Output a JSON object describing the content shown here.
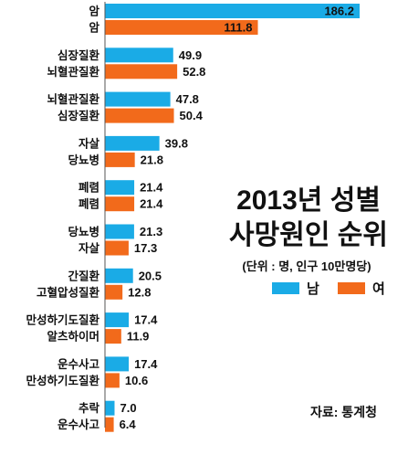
{
  "chart_data": {
    "type": "bar",
    "orientation": "horizontal",
    "title_lines": [
      "2013년 성별",
      "사망원인 순위"
    ],
    "unit_note": "(단위 : 명, 인구 10만명당)",
    "source": "자료: 통계청",
    "legend_position": "right",
    "series": [
      {
        "name": "남",
        "color": "#1aabe6"
      },
      {
        "name": "여",
        "color": "#f26a1b"
      }
    ],
    "groups": [
      {
        "rank": 1,
        "male": {
          "cause": "암",
          "value": 186.2
        },
        "female": {
          "cause": "암",
          "value": 111.8
        }
      },
      {
        "rank": 2,
        "male": {
          "cause": "심장질환",
          "value": 49.9
        },
        "female": {
          "cause": "뇌혈관질환",
          "value": 52.8
        }
      },
      {
        "rank": 3,
        "male": {
          "cause": "뇌혈관질환",
          "value": 47.8
        },
        "female": {
          "cause": "심장질환",
          "value": 50.4
        }
      },
      {
        "rank": 4,
        "male": {
          "cause": "자살",
          "value": 39.8
        },
        "female": {
          "cause": "당뇨병",
          "value": 21.8
        }
      },
      {
        "rank": 5,
        "male": {
          "cause": "폐렴",
          "value": 21.4
        },
        "female": {
          "cause": "폐렴",
          "value": 21.4
        }
      },
      {
        "rank": 6,
        "male": {
          "cause": "당뇨병",
          "value": 21.3
        },
        "female": {
          "cause": "자살",
          "value": 17.3
        }
      },
      {
        "rank": 7,
        "male": {
          "cause": "간질환",
          "value": 20.5
        },
        "female": {
          "cause": "고혈압성질환",
          "value": 12.8
        }
      },
      {
        "rank": 8,
        "male": {
          "cause": "만성하기도질환",
          "value": 17.4
        },
        "female": {
          "cause": "알츠하이머",
          "value": 11.9
        }
      },
      {
        "rank": 9,
        "male": {
          "cause": "운수사고",
          "value": 17.4
        },
        "female": {
          "cause": "만성하기도질환",
          "value": 10.6
        }
      },
      {
        "rank": 10,
        "male": {
          "cause": "추락",
          "value": 7.0
        },
        "female": {
          "cause": "운수사고",
          "value": 6.4
        }
      }
    ]
  }
}
